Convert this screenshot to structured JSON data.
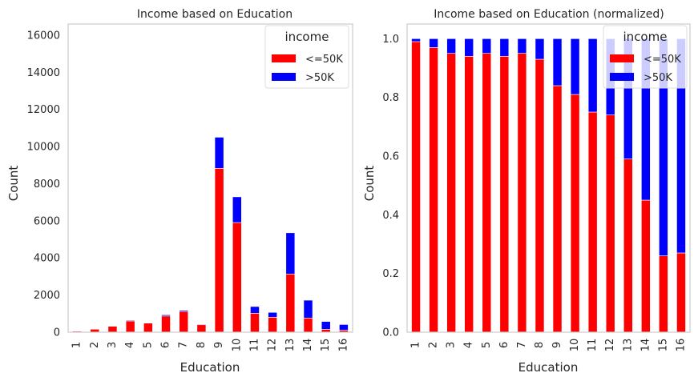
{
  "chart_data": [
    {
      "type": "bar",
      "stacked": true,
      "title": "Income based on Education",
      "xlabel": "Education",
      "ylabel": "Count",
      "categories": [
        "1",
        "2",
        "3",
        "4",
        "5",
        "6",
        "7",
        "8",
        "9",
        "10",
        "11",
        "12",
        "13",
        "14",
        "15",
        "16"
      ],
      "ylim": [
        0,
        16600
      ],
      "yticks": [
        "0",
        "2000",
        "4000",
        "6000",
        "8000",
        "10000",
        "12000",
        "14000",
        "16000"
      ],
      "ytick_values": [
        0,
        2000,
        4000,
        6000,
        8000,
        10000,
        12000,
        14000,
        16000
      ],
      "legend": {
        "title": "income",
        "position": "top-right",
        "entries": [
          "<=50K",
          ">50K"
        ]
      },
      "grid": false,
      "series": [
        {
          "name": "<=50K",
          "color": "#ff0000",
          "values": [
            51,
            162,
            317,
            606,
            487,
            871,
            1115,
            400,
            8826,
            5904,
            1021,
            802,
            3134,
            764,
            153,
            107
          ]
        },
        {
          "name": ">50K",
          "color": "#0000ff",
          "values": [
            0,
            6,
            16,
            40,
            27,
            62,
            60,
            33,
            1675,
            1387,
            361,
            265,
            2221,
            959,
            423,
            306
          ]
        }
      ]
    },
    {
      "type": "bar",
      "stacked": true,
      "title": "Income based on Education (normalized)",
      "xlabel": "Education",
      "ylabel": "Count",
      "categories": [
        "1",
        "2",
        "3",
        "4",
        "5",
        "6",
        "7",
        "8",
        "9",
        "10",
        "11",
        "12",
        "13",
        "14",
        "15",
        "16"
      ],
      "ylim": [
        0,
        1.05
      ],
      "yticks": [
        "0.0",
        "0.2",
        "0.4",
        "0.6",
        "0.8",
        "1.0"
      ],
      "ytick_values": [
        0,
        0.2,
        0.4,
        0.6,
        0.8,
        1.0
      ],
      "legend": {
        "title": "income",
        "position": "top-right",
        "entries": [
          "<=50K",
          ">50K"
        ]
      },
      "grid": false,
      "series": [
        {
          "name": "<=50K",
          "color": "#ff0000",
          "values": [
            0.99,
            0.97,
            0.95,
            0.94,
            0.95,
            0.94,
            0.95,
            0.93,
            0.84,
            0.81,
            0.75,
            0.74,
            0.59,
            0.45,
            0.26,
            0.27
          ]
        },
        {
          "name": ">50K",
          "color": "#0000ff",
          "values": [
            0.01,
            0.03,
            0.05,
            0.06,
            0.05,
            0.06,
            0.05,
            0.07,
            0.16,
            0.19,
            0.25,
            0.26,
            0.41,
            0.55,
            0.74,
            0.73
          ]
        }
      ]
    }
  ]
}
